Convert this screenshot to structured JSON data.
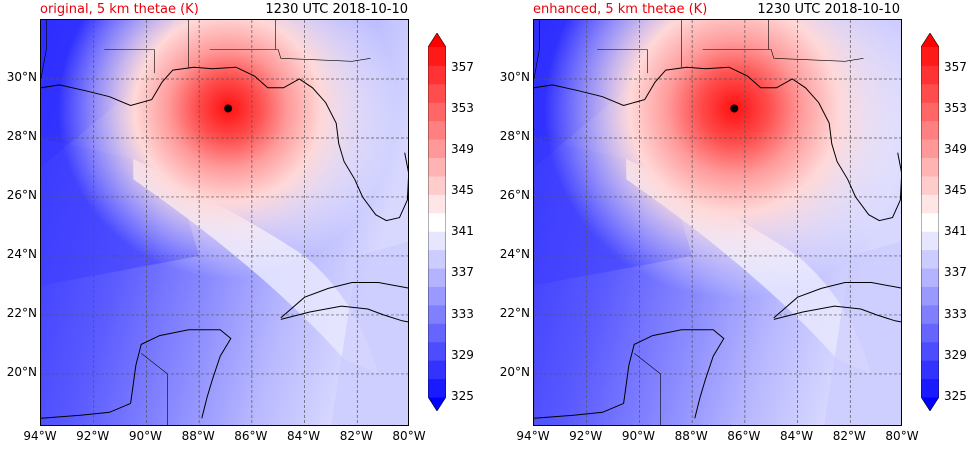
{
  "panels": [
    {
      "title": "original, 5 km thetae (K)",
      "time": "1230 UTC 2018-10-10"
    },
    {
      "title": "enhanced, 5 km thetae (K)",
      "time": "1230 UTC 2018-10-10"
    }
  ],
  "chart_data": {
    "type": "heatmap",
    "field": "5 km thetae (K)",
    "x_ticks": [
      "94°W",
      "92°W",
      "90°W",
      "88°W",
      "86°W",
      "84°W",
      "82°W",
      "80°W"
    ],
    "y_ticks": [
      "20°N",
      "22°N",
      "24°N",
      "26°N",
      "28°N",
      "30°N"
    ],
    "x_values": [
      -94,
      -92,
      -90,
      -88,
      -86,
      -84,
      -82,
      -80
    ],
    "y_values": [
      20,
      22,
      24,
      26,
      28,
      30
    ],
    "xlim": [
      -94,
      -80
    ],
    "ylim": [
      18.2,
      32.0
    ],
    "grid": true,
    "colorbar_ticks": [
      "325",
      "329",
      "333",
      "337",
      "341",
      "345",
      "349",
      "353",
      "357"
    ],
    "colorbar_range": [
      325,
      359
    ],
    "colorbar_extend": "both",
    "level_colors": [
      "#0000ff",
      "#1a1aff",
      "#3333ff",
      "#4d4dff",
      "#6666ff",
      "#8080ff",
      "#9999ff",
      "#b3b3ff",
      "#ccccff",
      "#e6e6ff",
      "#ffffff",
      "#ffe6e6",
      "#ffcccc",
      "#ffb3b3",
      "#ff9999",
      "#ff8080",
      "#ff6666",
      "#ff4d4d",
      "#ff3333",
      "#ff1a1a",
      "#ff0000"
    ],
    "storm_center": [
      {
        "lon": -86.9,
        "lat": 29.0
      },
      {
        "lon": -86.4,
        "lat": 29.0
      }
    ]
  }
}
